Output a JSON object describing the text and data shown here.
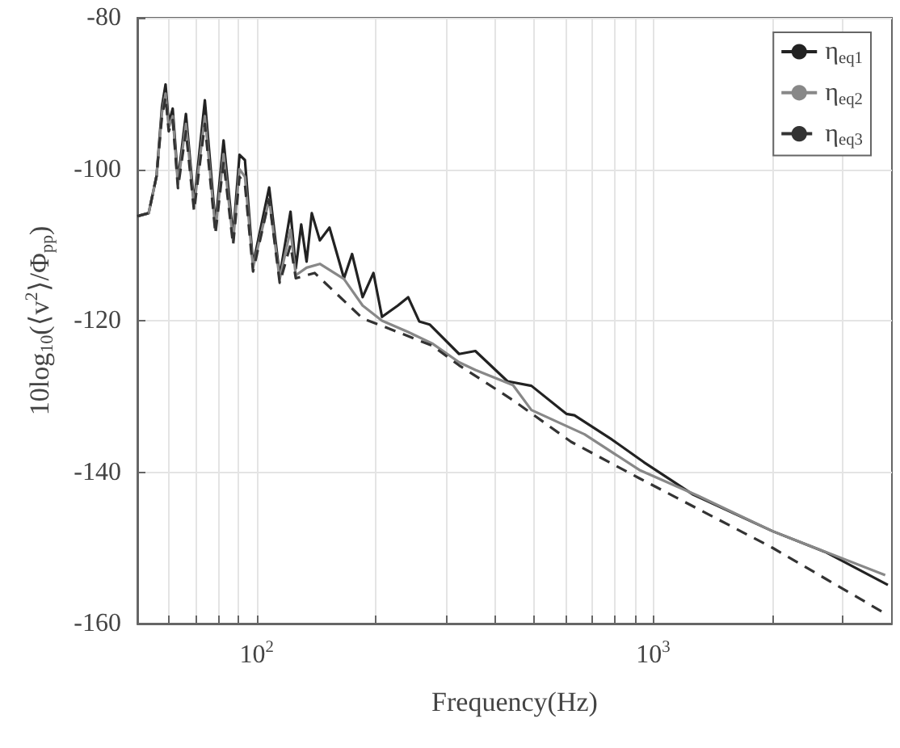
{
  "chart_data": {
    "type": "line",
    "xlabel": "Frequency(Hz)",
    "ylabel": "10log$_{10}$(⟨v$^{2}$⟩/Φ$_{pp}$)",
    "log": "x",
    "xlim": [
      50,
      4000
    ],
    "xticks": [
      {
        "value": 60,
        "label": null
      },
      {
        "value": 70,
        "label": null
      },
      {
        "value": 80,
        "label": null
      },
      {
        "value": 90,
        "label": null
      },
      {
        "value": 100,
        "label": "10$^{2}$"
      },
      {
        "value": 200,
        "label": null
      },
      {
        "value": 300,
        "label": null
      },
      {
        "value": 400,
        "label": null
      },
      {
        "value": 500,
        "label": null
      },
      {
        "value": 600,
        "label": null
      },
      {
        "value": 700,
        "label": null
      },
      {
        "value": 800,
        "label": null
      },
      {
        "value": 900,
        "label": null
      },
      {
        "value": 1000,
        "label": "10$^{3}$"
      },
      {
        "value": 2000,
        "label": null
      },
      {
        "value": 3000,
        "label": null
      }
    ],
    "ylim": [
      -160,
      -80
    ],
    "yticks": [
      -160,
      -140,
      -120,
      -100,
      -80
    ],
    "grid": true,
    "legend": "top right",
    "marker": "none",
    "series": [
      {
        "name": "η$_{eq1}$",
        "color": "#222222",
        "line_style": "solid",
        "x": [
          50,
          53.4,
          55.9,
          57.7,
          58.9,
          60,
          61.4,
          63.3,
          66.3,
          69.5,
          74,
          78.7,
          82.5,
          87.2,
          90.5,
          93.4,
          97.9,
          107.5,
          114.3,
          121.7,
          125.5,
          129.5,
          133.6,
          137.7,
          144.3,
          152.6,
          166,
          174,
          185,
          197,
          207,
          227,
          241,
          257,
          273,
          324,
          356,
          429,
          493,
          604,
          633,
          787,
          948,
          1255,
          2001,
          2731,
          3907
        ],
        "values": [
          -106.2,
          -105.8,
          -100.9,
          -91.7,
          -88.8,
          -93.9,
          -92,
          -101.5,
          -92.7,
          -104.5,
          -90.9,
          -107.3,
          -96.2,
          -108.8,
          -98.1,
          -98.8,
          -112.6,
          -102.4,
          -114.1,
          -105.6,
          -113.1,
          -107.3,
          -112.2,
          -105.8,
          -109.4,
          -107.7,
          -114.4,
          -111.2,
          -116.9,
          -113.7,
          -119.5,
          -118,
          -116.9,
          -120.1,
          -120.5,
          -124.4,
          -124,
          -128,
          -128.6,
          -132.3,
          -132.5,
          -135.7,
          -138.7,
          -142.9,
          -147.8,
          -150.6,
          -154.9
        ]
      },
      {
        "name": "η$_{eq2}$",
        "color": "#888888",
        "line_style": "solid",
        "x": [
          50,
          53.4,
          55.9,
          57.7,
          58.9,
          60,
          61.4,
          63.3,
          66.3,
          69.5,
          74,
          78.7,
          82.5,
          87.2,
          90.5,
          93.4,
          97.9,
          107.5,
          114.3,
          121.7,
          125.5,
          133.6,
          144.3,
          166,
          185,
          207,
          241,
          277,
          324,
          356,
          443,
          493,
          671,
          922,
          1294,
          2001,
          3847
        ],
        "values": [
          -106.2,
          -105.8,
          -100.9,
          -92.5,
          -90,
          -94.5,
          -93,
          -102,
          -94,
          -105,
          -93,
          -108,
          -98,
          -109.5,
          -100,
          -101,
          -113,
          -104,
          -114.5,
          -108,
          -114,
          -113,
          -112.5,
          -114.5,
          -118,
          -120,
          -121.5,
          -123,
          -125.5,
          -126.5,
          -128.5,
          -131.8,
          -135,
          -139.7,
          -143.1,
          -147.8,
          -153.6
        ]
      },
      {
        "name": "η$_{eq3}$",
        "color": "#333333",
        "line_style": "dashed",
        "x": [
          50,
          53.4,
          55.9,
          57.7,
          58.9,
          60,
          61.4,
          63.3,
          66.3,
          69.5,
          74,
          78.7,
          82.5,
          87.2,
          90.5,
          93.4,
          97.9,
          107.5,
          114.3,
          121.7,
          125.5,
          140,
          185,
          210,
          277,
          324,
          443,
          621,
          922,
          2001,
          3799
        ],
        "values": [
          -106.2,
          -105.8,
          -100.9,
          -93,
          -90.5,
          -95,
          -93.5,
          -102.5,
          -95,
          -105.5,
          -94,
          -108.5,
          -99,
          -110,
          -101,
          -102,
          -113.5,
          -104,
          -115,
          -110,
          -114.4,
          -113.7,
          -119.7,
          -120.8,
          -123.3,
          -125.9,
          -130.5,
          -136,
          -140.8,
          -150,
          -158.5
        ]
      }
    ]
  }
}
